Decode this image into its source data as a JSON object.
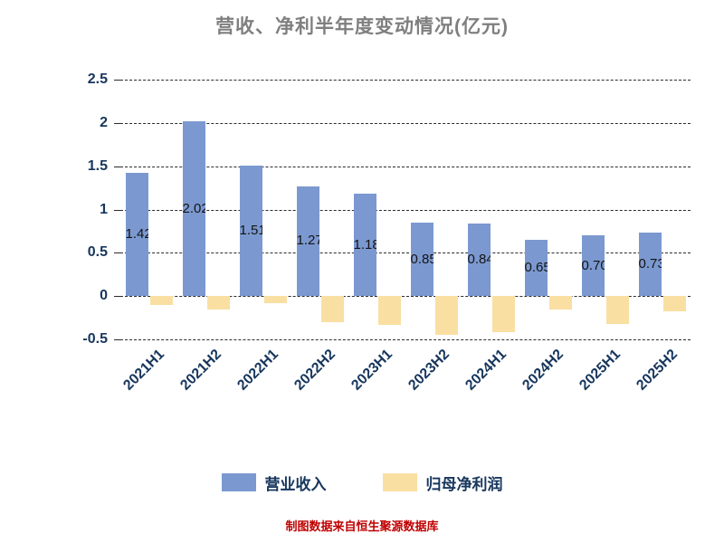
{
  "title": "营收、净利半年度变动情况(亿元)",
  "footer": "制图数据来自恒生聚源数据库",
  "legend": {
    "items": [
      {
        "label": "营业收入",
        "color": "#7b99d0"
      },
      {
        "label": "归母净利润",
        "color": "#fadfa3"
      }
    ]
  },
  "chart_data": {
    "type": "bar",
    "title": "营收、净利半年度变动情况(亿元)",
    "categories": [
      "2021H1",
      "2021H2",
      "2022H1",
      "2022H2",
      "2023H1",
      "2023H2",
      "2024H1",
      "2024H2",
      "2025H1",
      "2025H2"
    ],
    "series": [
      {
        "name": "营业收入",
        "color": "#7b99d0",
        "values": [
          1.42,
          2.02,
          1.51,
          1.27,
          1.18,
          0.85,
          0.84,
          0.65,
          0.7,
          0.73
        ]
      },
      {
        "name": "归母净利润",
        "color": "#fadfa3",
        "values": [
          -0.1,
          -0.15,
          -0.08,
          -0.3,
          -0.33,
          -0.45,
          -0.42,
          -0.15,
          -0.32,
          -0.18
        ]
      }
    ],
    "bar_labels": [
      "1.42",
      "2.02",
      "1.51",
      "1.27",
      "1.18",
      "0.85",
      "0.84",
      "0.65",
      "0.70",
      "0.73"
    ],
    "ylim": [
      -0.5,
      2.5
    ],
    "yticks": [
      {
        "label": "2.5",
        "value": 2.5
      },
      {
        "label": "2",
        "value": 2.0
      },
      {
        "label": "1.5",
        "value": 1.5
      },
      {
        "label": "1",
        "value": 1.0
      },
      {
        "label": "0.5",
        "value": 0.5
      },
      {
        "label": "0",
        "value": 0.0
      },
      {
        "label": "-0.5",
        "value": -0.5
      }
    ],
    "grid": "dashed-horizontal",
    "legend_position": "bottom",
    "xlabel": "",
    "ylabel": ""
  }
}
